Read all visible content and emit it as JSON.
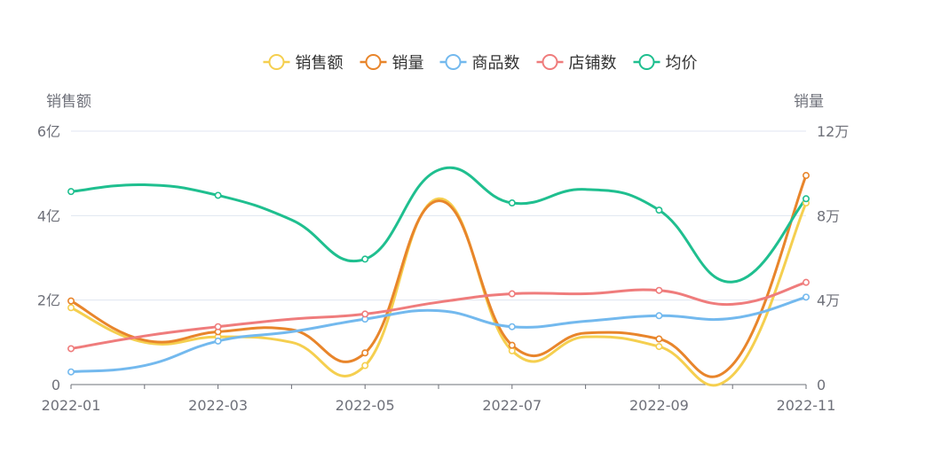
{
  "chart_data": {
    "type": "line",
    "smooth": true,
    "categories": [
      "2022-01",
      "2022-02",
      "2022-03",
      "2022-04",
      "2022-05",
      "2022-06",
      "2022-07",
      "2022-08",
      "2022-09",
      "2022-10",
      "2022-11"
    ],
    "x_tick_labels": [
      "2022-01",
      "2022-03",
      "2022-05",
      "2022-07",
      "2022-09",
      "2022-11"
    ],
    "legend_position": "top-center",
    "grid": {
      "horizontal": true,
      "vertical": false
    },
    "left_axis": {
      "name": "销售额",
      "min": 0,
      "max": 6,
      "ticks": [
        {
          "value": 0,
          "label": "0"
        },
        {
          "value": 2,
          "label": "2亿"
        },
        {
          "value": 4,
          "label": "4亿"
        },
        {
          "value": 6,
          "label": "6亿"
        }
      ]
    },
    "right_axis": {
      "name": "销量",
      "min": 0,
      "max": 12,
      "ticks": [
        {
          "value": 0,
          "label": "0"
        },
        {
          "value": 4,
          "label": "4万"
        },
        {
          "value": 8,
          "label": "8万"
        },
        {
          "value": 12,
          "label": "12万"
        }
      ]
    },
    "series": [
      {
        "name": "销售额",
        "color": "#f5cf4f",
        "axis": "left",
        "values": [
          1.82,
          1.0,
          1.13,
          1.0,
          0.45,
          4.4,
          0.8,
          1.13,
          0.9,
          0.22,
          4.3
        ]
      },
      {
        "name": "销量",
        "color": "#e8852b",
        "axis": "left",
        "values": [
          1.98,
          1.05,
          1.25,
          1.3,
          0.75,
          4.35,
          0.93,
          1.22,
          1.08,
          0.47,
          4.95
        ]
      },
      {
        "name": "商品数",
        "color": "#73b9ee",
        "axis": "left",
        "values": [
          0.3,
          0.45,
          1.03,
          1.25,
          1.55,
          1.75,
          1.37,
          1.5,
          1.63,
          1.57,
          2.07
        ]
      },
      {
        "name": "店铺数",
        "color": "#ef7c7c",
        "axis": "left",
        "values": [
          0.85,
          1.15,
          1.37,
          1.55,
          1.67,
          1.95,
          2.15,
          2.15,
          2.23,
          1.9,
          2.42
        ]
      },
      {
        "name": "均价",
        "color": "#1fbf8f",
        "axis": "left",
        "values": [
          4.57,
          4.73,
          4.48,
          3.9,
          2.97,
          5.08,
          4.3,
          4.62,
          4.13,
          2.43,
          4.4
        ]
      }
    ]
  }
}
